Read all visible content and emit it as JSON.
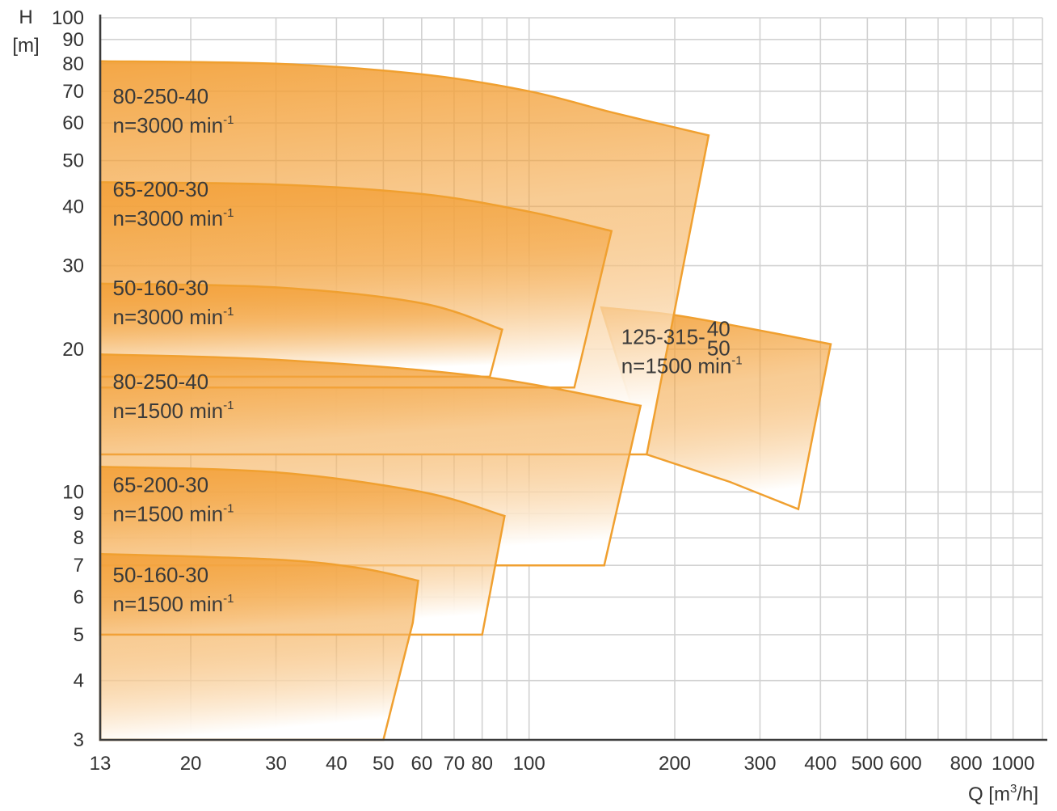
{
  "colors": {
    "curve_stroke": "#f0a030",
    "fill_top": "#f3a23c",
    "fill_bottom": "#ffffff",
    "grid": "#d2d2d2",
    "axis": "#3a3a3a",
    "text": "#333333"
  },
  "chart_data": {
    "type": "area",
    "description_scale": "log-log",
    "title": "",
    "ylabel": {
      "symbol": "H",
      "unit": "[m]"
    },
    "xlabel": {
      "text": "Q [m",
      "sup": "3",
      "end": "/h]"
    },
    "xlim": [
      13,
      1150
    ],
    "ylim": [
      3,
      100
    ],
    "x_scale": "log",
    "y_scale": "log",
    "grid": true,
    "x_ticks": [
      13,
      20,
      30,
      40,
      50,
      60,
      70,
      80,
      100,
      200,
      300,
      400,
      500,
      600,
      800,
      1000
    ],
    "x_tick_labels": [
      "13",
      "20",
      "30",
      "40",
      "50",
      "60",
      "70",
      "80",
      "100",
      "200",
      "300",
      "400",
      "500",
      "600",
      "800",
      "1000"
    ],
    "x_grid": [
      13,
      20,
      30,
      40,
      50,
      60,
      70,
      80,
      90,
      100,
      200,
      300,
      400,
      500,
      600,
      700,
      800,
      900,
      1000,
      1150
    ],
    "y_ticks": [
      3,
      4,
      5,
      6,
      7,
      8,
      9,
      10,
      20,
      30,
      40,
      50,
      60,
      70,
      80,
      90,
      100
    ],
    "y_tick_labels": [
      "3",
      "4",
      "5",
      "6",
      "7",
      "8",
      "9",
      "10",
      "20",
      "30",
      "40",
      "50",
      "60",
      "70",
      "80",
      "90",
      "100"
    ],
    "regions": [
      {
        "label": "125-315-",
        "frac_top": "40",
        "frac_bottom": "50",
        "speed": "n=1500 min",
        "speed_sup": "-1",
        "label_at": [
          155,
          20.5
        ],
        "outline": [
          [
            141,
            24.5
          ],
          [
            200,
            23.6
          ],
          [
            280,
            22.2
          ],
          [
            420,
            20.5
          ],
          [
            360,
            9.2
          ],
          [
            260,
            10.5
          ],
          [
            175,
            12
          ]
        ]
      },
      {
        "label": "80-250-40",
        "speed": "n=3000 min",
        "speed_sup": "-1",
        "label_at": [
          13.8,
          66
        ],
        "outline": [
          [
            13,
            81
          ],
          [
            30,
            80
          ],
          [
            60,
            76
          ],
          [
            100,
            70
          ],
          [
            150,
            63
          ],
          [
            235,
            56.5
          ],
          [
            175,
            12
          ],
          [
            13,
            12
          ]
        ]
      },
      {
        "label": "65-200-30",
        "speed": "n=3000 min",
        "speed_sup": "-1",
        "label_at": [
          13.8,
          42
        ],
        "outline": [
          [
            13,
            45
          ],
          [
            30,
            44.5
          ],
          [
            60,
            42.5
          ],
          [
            100,
            39
          ],
          [
            148,
            35.5
          ],
          [
            124,
            16.6
          ],
          [
            13,
            16.6
          ]
        ]
      },
      {
        "label": "50-160-30",
        "speed": "n=3000 min",
        "speed_sup": "-1",
        "label_at": [
          13.8,
          26
        ],
        "outline": [
          [
            13,
            27.5
          ],
          [
            30,
            27
          ],
          [
            60,
            25
          ],
          [
            88,
            22
          ],
          [
            83,
            17.5
          ],
          [
            13,
            17.5
          ]
        ]
      },
      {
        "label": "80-250-40",
        "speed": "n=1500 min",
        "speed_sup": "-1",
        "label_at": [
          13.8,
          16.5
        ],
        "outline": [
          [
            13,
            19.5
          ],
          [
            30,
            19
          ],
          [
            80,
            17.5
          ],
          [
            170,
            15.2
          ],
          [
            143,
            7
          ],
          [
            13,
            7
          ]
        ]
      },
      {
        "label": "65-200-30",
        "speed": "n=1500 min",
        "speed_sup": "-1",
        "label_at": [
          13.8,
          10.0
        ],
        "outline": [
          [
            13,
            11.3
          ],
          [
            30,
            11
          ],
          [
            60,
            10
          ],
          [
            89,
            8.9
          ],
          [
            80,
            5
          ],
          [
            13,
            5
          ]
        ]
      },
      {
        "label": "50-160-30",
        "speed": "n=1500 min",
        "speed_sup": "-1",
        "label_at": [
          13.8,
          6.45
        ],
        "outline": [
          [
            13,
            7.4
          ],
          [
            30,
            7.2
          ],
          [
            45,
            6.9
          ],
          [
            59,
            6.5
          ],
          [
            57.5,
            5.3
          ],
          [
            50,
            3
          ],
          [
            13,
            3
          ]
        ]
      }
    ]
  }
}
